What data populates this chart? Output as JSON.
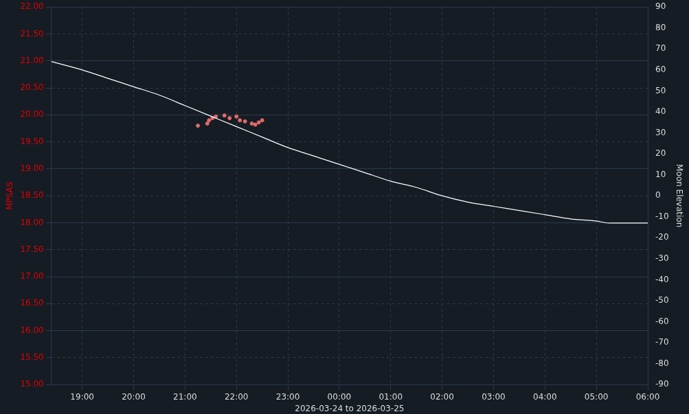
{
  "chart_data": {
    "type": "scatter",
    "xlabel": "2026-03-24 to 2026-03-25",
    "ylabel": "MPSAS",
    "y2label": "Moon Elevation",
    "xlim": [
      "2026-03-24T18:24",
      "2026-03-25T06:00"
    ],
    "xticks": [
      {
        "value": "2026-03-24T19:00",
        "label": "19:00"
      },
      {
        "value": "2026-03-24T20:00",
        "label": "20:00"
      },
      {
        "value": "2026-03-24T21:00",
        "label": "21:00"
      },
      {
        "value": "2026-03-24T22:00",
        "label": "22:00"
      },
      {
        "value": "2026-03-24T23:00",
        "label": "23:00"
      },
      {
        "value": "2026-03-25T00:00",
        "label": "00:00"
      },
      {
        "value": "2026-03-25T01:00",
        "label": "01:00"
      },
      {
        "value": "2026-03-25T02:00",
        "label": "02:00"
      },
      {
        "value": "2026-03-25T03:00",
        "label": "03:00"
      },
      {
        "value": "2026-03-25T04:00",
        "label": "04:00"
      },
      {
        "value": "2026-03-25T05:00",
        "label": "05:00"
      },
      {
        "value": "2026-03-25T06:00",
        "label": "06:00"
      }
    ],
    "ylim": [
      15,
      22
    ],
    "yticks": [
      {
        "value": 15,
        "label": "15.00"
      },
      {
        "value": 15.5,
        "label": "15.50"
      },
      {
        "value": 16,
        "label": "16.00"
      },
      {
        "value": 16.5,
        "label": "16.50"
      },
      {
        "value": 17,
        "label": "17.00"
      },
      {
        "value": 17.5,
        "label": "17.50"
      },
      {
        "value": 18,
        "label": "18.00"
      },
      {
        "value": 18.5,
        "label": "18.50"
      },
      {
        "value": 19,
        "label": "19.00"
      },
      {
        "value": 19.5,
        "label": "19.50"
      },
      {
        "value": 20,
        "label": "20.00"
      },
      {
        "value": 20.5,
        "label": "20.50"
      },
      {
        "value": 21,
        "label": "21.00"
      },
      {
        "value": 21.5,
        "label": "21.50"
      },
      {
        "value": 22,
        "label": "22.00"
      }
    ],
    "y2lim": [
      -90,
      90
    ],
    "y2ticks": [
      -90,
      -80,
      -70,
      -60,
      -50,
      -40,
      -30,
      -20,
      -10,
      0,
      10,
      20,
      30,
      40,
      50,
      60,
      70,
      80,
      90
    ],
    "grid": true,
    "marker": "circle",
    "series": [
      {
        "type": "line",
        "axis": "y2",
        "color": "#ffffff",
        "marker": "none",
        "x": [
          "2026-03-24T18:24",
          "2026-03-24T19:00",
          "2026-03-24T19:30",
          "2026-03-24T20:00",
          "2026-03-24T20:30",
          "2026-03-24T21:00",
          "2026-03-24T21:30",
          "2026-03-24T22:00",
          "2026-03-24T22:30",
          "2026-03-24T23:00",
          "2026-03-24T23:30",
          "2026-03-25T00:00",
          "2026-03-25T00:30",
          "2026-03-25T01:00",
          "2026-03-25T01:30",
          "2026-03-25T02:00",
          "2026-03-25T02:30",
          "2026-03-25T03:00",
          "2026-03-25T03:30",
          "2026-03-25T04:00",
          "2026-03-25T04:30",
          "2026-03-25T05:00",
          "2026-03-25T05:15",
          "2026-03-25T05:30",
          "2026-03-25T06:00"
        ],
        "values": [
          64,
          60,
          56,
          52,
          48,
          43,
          38,
          33,
          28,
          23,
          19,
          15,
          11,
          7,
          4,
          0,
          -3,
          -5,
          -7,
          -9,
          -11,
          -12,
          -13,
          -13,
          -13
        ]
      },
      {
        "color": "#e06a6a",
        "x": [
          "2026-03-24T21:15",
          "2026-03-24T21:26",
          "2026-03-24T21:28",
          "2026-03-24T21:32",
          "2026-03-24T21:36",
          "2026-03-24T21:46",
          "2026-03-24T21:52",
          "2026-03-24T22:00",
          "2026-03-24T22:04",
          "2026-03-24T22:10",
          "2026-03-24T22:18",
          "2026-03-24T22:22",
          "2026-03-24T22:26",
          "2026-03-24T22:30"
        ],
        "values": [
          19.8,
          19.84,
          19.9,
          19.94,
          19.97,
          19.99,
          19.94,
          19.97,
          19.9,
          19.88,
          19.84,
          19.82,
          19.86,
          19.9
        ]
      }
    ]
  }
}
